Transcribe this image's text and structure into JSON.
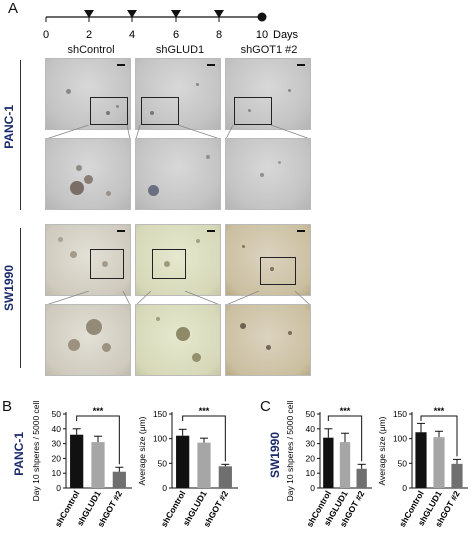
{
  "panel_a": {
    "letter": "A",
    "timeline": {
      "ticks": [
        "0",
        "2",
        "4",
        "6",
        "8",
        "10"
      ],
      "unit": "Days"
    },
    "columns": [
      "shControl",
      "shGLUD1",
      "shGOT1 #2"
    ],
    "rows": [
      "PANC-1",
      "SW1990"
    ]
  },
  "panel_b": {
    "letter": "B",
    "row_label": "PANC-1"
  },
  "panel_c": {
    "letter": "C",
    "row_label": "SW1990"
  },
  "colors": {
    "bar_control": "#111111",
    "bar_glud1": "#a6a6a6",
    "bar_got1": "#6f6f6f"
  },
  "chart_data": [
    {
      "type": "bar",
      "categories": [
        "shControl",
        "shGLUD1",
        "shGOT #2"
      ],
      "values": [
        36,
        31,
        11
      ],
      "errors": [
        4,
        4,
        3
      ],
      "ylabel": "Day 10 shperes / 5000 cell",
      "ylim": [
        0,
        50
      ],
      "yticks": [
        "0",
        "10",
        "20",
        "30",
        "40",
        "50"
      ],
      "annotation": "***"
    },
    {
      "type": "bar",
      "categories": [
        "shControl",
        "shGLUD1",
        "shGOT #2"
      ],
      "values": [
        106,
        92,
        44
      ],
      "errors": [
        13,
        9,
        4
      ],
      "ylabel": "Average size (μm)",
      "ylim": [
        0,
        150
      ],
      "yticks": [
        "0",
        "50",
        "100",
        "150"
      ],
      "annotation": "***"
    },
    {
      "type": "bar",
      "categories": [
        "shControl",
        "shGLUD1",
        "shGOT #2"
      ],
      "values": [
        34,
        31,
        13
      ],
      "errors": [
        6,
        6,
        3
      ],
      "ylabel": "Day 10 shperes / 5000 cell",
      "ylim": [
        0,
        50
      ],
      "yticks": [
        "0",
        "10",
        "20",
        "30",
        "40",
        "50"
      ],
      "annotation": "***"
    },
    {
      "type": "bar",
      "categories": [
        "shControl",
        "shGLUD1",
        "shGOT #2"
      ],
      "values": [
        113,
        103,
        49
      ],
      "errors": [
        18,
        12,
        9
      ],
      "ylabel": "Average size (μm)",
      "ylim": [
        0,
        150
      ],
      "yticks": [
        "0",
        "50",
        "100",
        "150"
      ],
      "annotation": "***"
    }
  ]
}
